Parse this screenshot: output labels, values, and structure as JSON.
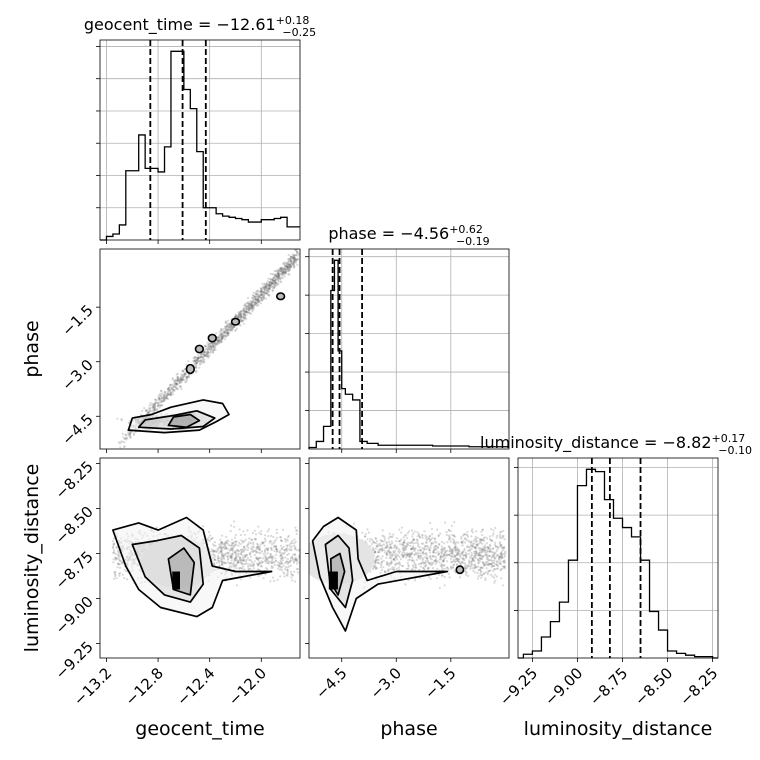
{
  "chart_data": [
    {
      "type": "histogram",
      "parameter": "geocent_time",
      "title": {
        "label": "geocent_time",
        "median": "−12.61",
        "plus": "+0.18",
        "minus": "−0.25"
      },
      "xlim": [
        -13.25,
        -11.7
      ],
      "bin_edges": [
        -13.25,
        -13.2,
        -13.15,
        -13.1,
        -13.05,
        -13.0,
        -12.95,
        -12.9,
        -12.85,
        -12.8,
        -12.75,
        -12.7,
        -12.65,
        -12.6,
        -12.55,
        -12.5,
        -12.45,
        -12.4,
        -12.35,
        -12.3,
        -12.25,
        -12.2,
        -12.15,
        -12.1,
        -12.05,
        -12.0,
        -11.95,
        -11.9,
        -11.85,
        -11.8,
        -11.75,
        -11.7
      ],
      "counts": [
        0.0,
        1.5,
        2.5,
        6.3,
        29.0,
        29.0,
        44.0,
        30.0,
        30.0,
        28.5,
        39.0,
        79.0,
        79.0,
        63.0,
        55.0,
        37.0,
        13.5,
        13.5,
        11.0,
        10.0,
        9.5,
        9.0,
        8.5,
        7.5,
        7.5,
        8.5,
        8.5,
        9.0,
        9.5,
        5.5,
        5.5
      ],
      "quantiles": [
        -12.86,
        -12.61,
        -12.43
      ],
      "ytick_count": 6
    },
    {
      "type": "histogram",
      "parameter": "phase",
      "title": {
        "label": "phase",
        "median": "−4.56",
        "plus": "+0.62",
        "minus": "−0.19"
      },
      "xlim": [
        -5.4,
        0.1
      ],
      "bin_edges": [
        -5.4,
        -5.2,
        -5.0,
        -4.8,
        -4.7,
        -4.6,
        -4.5,
        -4.4,
        -4.2,
        -4.0,
        -3.8,
        -3.5,
        -3.0,
        -2.0,
        -1.0,
        0.1
      ],
      "counts": [
        0.4,
        2.0,
        6.0,
        42.0,
        50.0,
        26.0,
        16.0,
        14.5,
        13.0,
        2.0,
        1.5,
        1.0,
        1.0,
        0.8,
        0.6
      ],
      "quantiles": [
        -4.75,
        -4.56,
        -3.94
      ],
      "ytick_count": 5
    },
    {
      "type": "histogram",
      "parameter": "luminosity_distance",
      "title": {
        "label": "luminosity_distance",
        "median": "−8.82",
        "plus": "+0.17",
        "minus": "−0.10"
      },
      "xlim": [
        -9.33,
        -8.22
      ],
      "bin_edges": [
        -9.33,
        -9.3,
        -9.25,
        -9.2,
        -9.15,
        -9.1,
        -9.05,
        -9.0,
        -8.95,
        -8.9,
        -8.85,
        -8.8,
        -8.75,
        -8.7,
        -8.65,
        -8.6,
        -8.55,
        -8.5,
        -8.45,
        -8.4,
        -8.35,
        -8.3,
        -8.25,
        -8.22
      ],
      "counts": [
        0.0,
        0.8,
        1.5,
        4.5,
        7.8,
        12.0,
        21.0,
        37.0,
        40.5,
        40.0,
        34.0,
        30.0,
        28.0,
        26.0,
        21.0,
        10.0,
        6.0,
        1.5,
        1.0,
        0.6,
        0.3,
        0.3,
        0.0
      ],
      "quantiles": [
        -8.92,
        -8.82,
        -8.65
      ],
      "xticks": [
        "−9.25",
        "−9.00",
        "−8.75",
        "−8.50",
        "−8.25"
      ],
      "xtick_values": [
        -9.25,
        -9.0,
        -8.75,
        -8.5,
        -8.25
      ],
      "xlabel": "luminosity_distance",
      "ytick_count": 4
    },
    {
      "type": "contour",
      "x_param": "geocent_time",
      "y_param": "phase",
      "xlim": [
        -13.25,
        -11.7
      ],
      "ylim": [
        -5.4,
        0.1
      ],
      "ylabel": "phase",
      "yticks": [
        "−4.5",
        "−3.0",
        "−1.5"
      ],
      "ytick_values": [
        -4.5,
        -3.0,
        -1.5
      ],
      "ridge": {
        "from": [
          -13.1,
          -5.25
        ],
        "to": [
          -11.72,
          -0.1
        ],
        "halfwidth": 0.35
      },
      "core_blobs": [
        [
          -12.87,
          -4.72,
          0.08,
          0.15,
          0.32
        ],
        [
          -12.62,
          -4.68,
          0.09,
          0.2,
          0.36
        ],
        [
          -12.55,
          -4.5,
          0.05,
          0.15,
          0.22
        ]
      ],
      "small_contours": [
        [
          -12.55,
          -3.2,
          0.03,
          0.12
        ],
        [
          -12.48,
          -2.65,
          0.03,
          0.1
        ],
        [
          -12.38,
          -2.35,
          0.03,
          0.1
        ],
        [
          -12.2,
          -1.9,
          0.03,
          0.09
        ],
        [
          -11.85,
          -1.2,
          0.03,
          0.09
        ]
      ],
      "contour_levels": [
        [
          [
            -13.03,
            -4.88
          ],
          [
            -13.0,
            -4.55
          ],
          [
            -12.85,
            -4.45
          ],
          [
            -12.7,
            -4.25
          ],
          [
            -12.45,
            -4.05
          ],
          [
            -12.3,
            -4.15
          ],
          [
            -12.25,
            -4.45
          ],
          [
            -12.35,
            -4.65
          ],
          [
            -12.48,
            -4.88
          ],
          [
            -12.75,
            -4.95
          ]
        ],
        [
          [
            -12.95,
            -4.8
          ],
          [
            -12.9,
            -4.6
          ],
          [
            -12.68,
            -4.48
          ],
          [
            -12.5,
            -4.35
          ],
          [
            -12.36,
            -4.55
          ],
          [
            -12.45,
            -4.78
          ],
          [
            -12.7,
            -4.85
          ]
        ],
        [
          [
            -12.72,
            -4.75
          ],
          [
            -12.68,
            -4.52
          ],
          [
            -12.55,
            -4.45
          ],
          [
            -12.48,
            -4.62
          ],
          [
            -12.58,
            -4.8
          ]
        ]
      ]
    },
    {
      "type": "contour",
      "x_param": "geocent_time",
      "y_param": "luminosity_distance",
      "xlim": [
        -13.25,
        -11.7
      ],
      "ylim": [
        -9.33,
        -8.22
      ],
      "ylabel": "luminosity_distance",
      "yticks": [
        "−9.25",
        "−9.00",
        "−8.75",
        "−8.50",
        "−8.25"
      ],
      "ytick_values": [
        -9.25,
        -9.0,
        -8.75,
        -8.5,
        -8.25
      ],
      "xticks": [
        "−13.2",
        "−12.8",
        "−12.4",
        "−12.0"
      ],
      "xtick_values": [
        -13.2,
        -12.8,
        -12.4,
        -12.0
      ],
      "xlabel": "geocent_time",
      "contour_levels": [
        [
          [
            -13.15,
            -8.62
          ],
          [
            -12.95,
            -8.58
          ],
          [
            -12.8,
            -8.62
          ],
          [
            -12.58,
            -8.55
          ],
          [
            -12.45,
            -8.62
          ],
          [
            -12.38,
            -8.82
          ],
          [
            -12.2,
            -8.85
          ],
          [
            -11.92,
            -8.85
          ],
          [
            -12.3,
            -8.9
          ],
          [
            -12.38,
            -9.05
          ],
          [
            -12.5,
            -9.1
          ],
          [
            -12.78,
            -9.05
          ],
          [
            -12.95,
            -8.95
          ],
          [
            -13.05,
            -8.82
          ]
        ],
        [
          [
            -13.0,
            -8.7
          ],
          [
            -12.82,
            -8.68
          ],
          [
            -12.62,
            -8.65
          ],
          [
            -12.48,
            -8.72
          ],
          [
            -12.45,
            -8.92
          ],
          [
            -12.55,
            -9.02
          ],
          [
            -12.75,
            -8.98
          ],
          [
            -12.9,
            -8.88
          ]
        ],
        [
          [
            -12.72,
            -8.78
          ],
          [
            -12.6,
            -8.72
          ],
          [
            -12.52,
            -8.8
          ],
          [
            -12.55,
            -8.98
          ],
          [
            -12.68,
            -8.95
          ]
        ]
      ],
      "filled_blocks": [
        [
          -12.66,
          -8.9,
          0.06,
          0.1
        ]
      ],
      "density_center": [
        -12.65,
        -8.8,
        0.28,
        0.14
      ]
    },
    {
      "type": "contour",
      "x_param": "phase",
      "y_param": "luminosity_distance",
      "xlim": [
        -5.4,
        0.1
      ],
      "ylim": [
        -9.33,
        -8.22
      ],
      "xticks": [
        "−4.5",
        "−3.0",
        "−1.5"
      ],
      "xtick_values": [
        -4.5,
        -3.0,
        -1.5
      ],
      "xlabel": "phase",
      "contour_levels": [
        [
          [
            -5.3,
            -8.68
          ],
          [
            -5.0,
            -8.6
          ],
          [
            -4.6,
            -8.55
          ],
          [
            -4.1,
            -8.62
          ],
          [
            -4.05,
            -8.78
          ],
          [
            -3.8,
            -8.9
          ],
          [
            -3.0,
            -8.85
          ],
          [
            -1.6,
            -8.85
          ],
          [
            -3.5,
            -8.92
          ],
          [
            -4.1,
            -9.0
          ],
          [
            -4.4,
            -9.18
          ],
          [
            -4.75,
            -9.05
          ],
          [
            -5.1,
            -8.88
          ]
        ],
        [
          [
            -4.95,
            -8.7
          ],
          [
            -4.6,
            -8.65
          ],
          [
            -4.3,
            -8.72
          ],
          [
            -4.2,
            -8.9
          ],
          [
            -4.4,
            -9.05
          ],
          [
            -4.8,
            -8.95
          ]
        ],
        [
          [
            -4.8,
            -8.78
          ],
          [
            -4.55,
            -8.75
          ],
          [
            -4.42,
            -8.85
          ],
          [
            -4.6,
            -8.98
          ],
          [
            -4.78,
            -8.92
          ]
        ]
      ],
      "small_contours": [
        [
          -1.25,
          -8.84,
          0.1,
          0.02
        ]
      ],
      "filled_blocks": [
        [
          -4.73,
          -8.9,
          0.25,
          0.1
        ]
      ],
      "density_center": [
        -4.6,
        -8.78,
        1.0,
        0.14
      ]
    }
  ]
}
